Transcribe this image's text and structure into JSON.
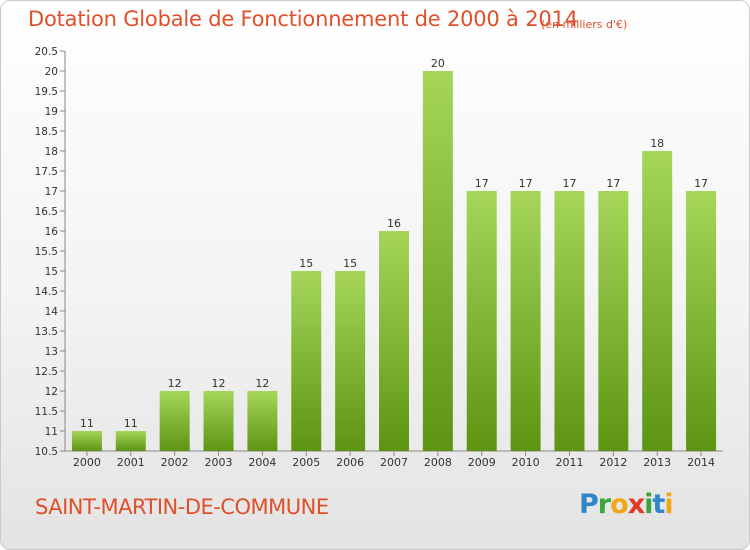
{
  "header": {
    "title": "Dotation Globale de Fonctionnement de 2000 à 2014",
    "subtitle": "(en milliers d'€)"
  },
  "footer": {
    "commune": "SAINT-MARTIN-DE-COMMUNE",
    "logo": [
      {
        "ch": "P",
        "color": "#2f86c9"
      },
      {
        "ch": "r",
        "color": "#3aa63a"
      },
      {
        "ch": "o",
        "color": "#f0a81b"
      },
      {
        "ch": "x",
        "color": "#e03a26"
      },
      {
        "ch": "i",
        "color": "#3aa63a"
      },
      {
        "ch": "t",
        "color": "#2f86c9"
      },
      {
        "ch": "i",
        "color": "#f0a81b"
      }
    ]
  },
  "colors": {
    "accent": "#e0502a",
    "bar_top": "#a5d65a",
    "bar_bottom": "#5d9412"
  },
  "chart_data": {
    "type": "bar",
    "title": "Dotation Globale de Fonctionnement de 2000 à 2014",
    "subtitle": "(en milliers d'€)",
    "categories": [
      "2000",
      "2001",
      "2002",
      "2003",
      "2004",
      "2005",
      "2006",
      "2007",
      "2008",
      "2009",
      "2010",
      "2011",
      "2012",
      "2013",
      "2014"
    ],
    "values": [
      11,
      11,
      12,
      12,
      12,
      15,
      15,
      16,
      20,
      17,
      17,
      17,
      17,
      18,
      17
    ],
    "ylim": [
      10.5,
      20.5
    ],
    "yticks": [
      "10.5",
      "11",
      "11.5",
      "12",
      "12.5",
      "13",
      "13.5",
      "14",
      "14.5",
      "15",
      "15.5",
      "16",
      "16.5",
      "17",
      "17.5",
      "18",
      "18.5",
      "19",
      "19.5",
      "20",
      "20.5"
    ],
    "xlabel": "",
    "ylabel": "",
    "grid": false,
    "legend": "none"
  }
}
